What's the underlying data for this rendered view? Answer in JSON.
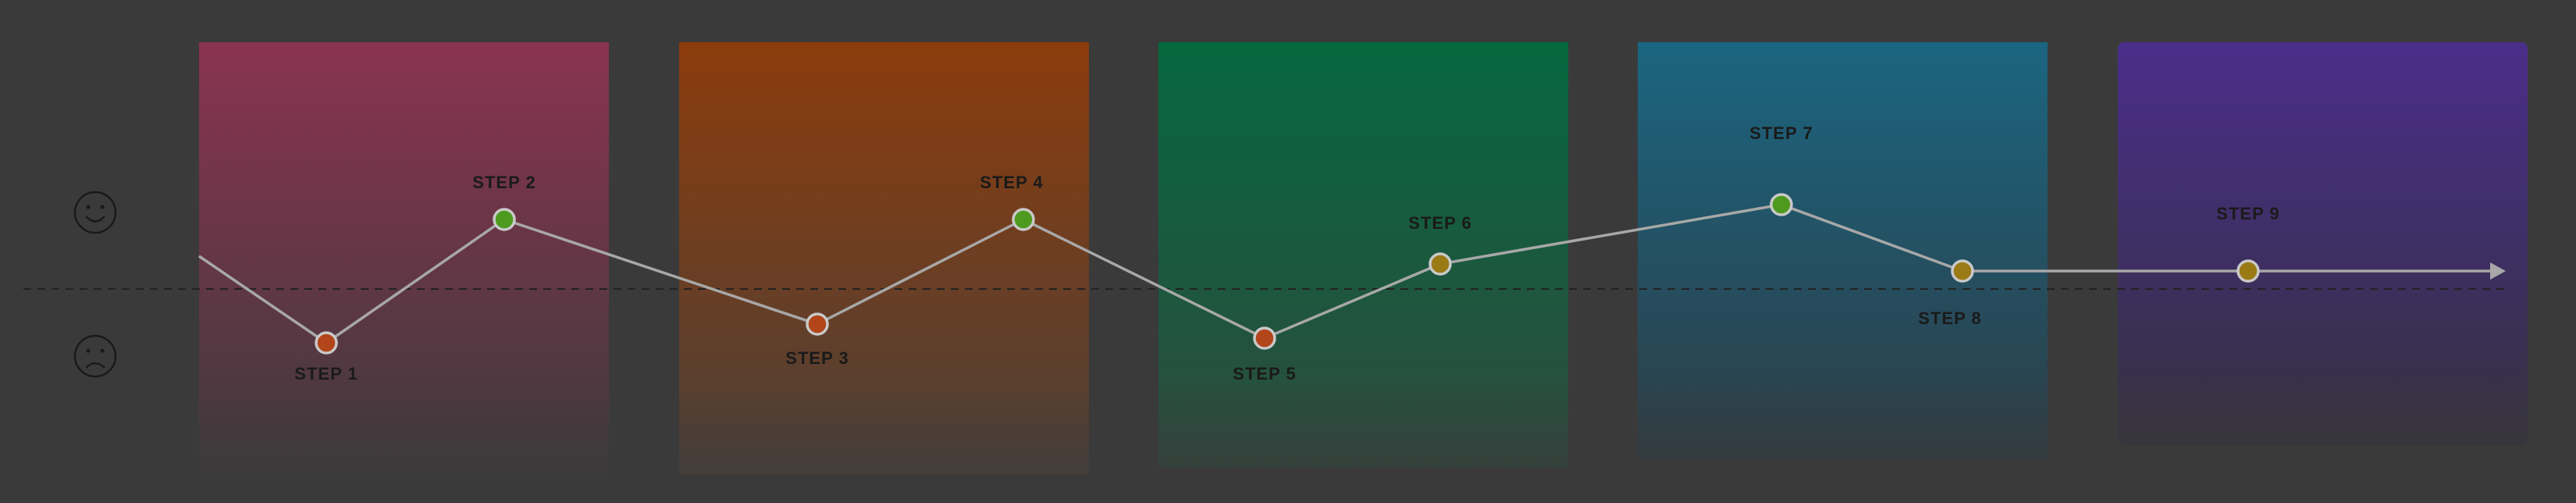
{
  "colors": {
    "background": "#3a3a3a",
    "line": "#a8a8a8",
    "baseline": "#222222",
    "label": "#1a1a1a",
    "marker_positive": "#4e9a1e",
    "marker_negative": "#b2451a",
    "marker_neutral": "#9a7a14",
    "marker_ring": "#c9c9c9",
    "face_icon": "#1a1a1a"
  },
  "phases": [
    {
      "color_top": "#8a3350",
      "color_bottom": "#3f3a3c"
    },
    {
      "color_top": "#8c3c0c",
      "color_bottom": "#4d4038"
    },
    {
      "color_top": "#06683e",
      "color_bottom": "#2e4a3f"
    },
    {
      "color_top": "#1b6580",
      "color_bottom": "#2d3d46"
    },
    {
      "color_top": "#4a2e8a",
      "color_bottom": "#34303f"
    }
  ],
  "icons": [
    {
      "name": "happy-face-icon",
      "mood": "happy"
    },
    {
      "name": "sad-face-icon",
      "mood": "sad"
    }
  ],
  "steps": [
    {
      "label": "STEP 1",
      "sentiment": "negative",
      "label_position": "below"
    },
    {
      "label": "STEP 2",
      "sentiment": "positive",
      "label_position": "above"
    },
    {
      "label": "STEP 3",
      "sentiment": "negative",
      "label_position": "below"
    },
    {
      "label": "STEP 4",
      "sentiment": "positive",
      "label_position": "above"
    },
    {
      "label": "STEP 5",
      "sentiment": "negative",
      "label_position": "below"
    },
    {
      "label": "STEP 6",
      "sentiment": "neutral",
      "label_position": "above"
    },
    {
      "label": "STEP 7",
      "sentiment": "positive",
      "label_position": "above"
    },
    {
      "label": "STEP 8",
      "sentiment": "neutral",
      "label_position": "below"
    },
    {
      "label": "STEP 9",
      "sentiment": "neutral",
      "label_position": "above"
    }
  ]
}
